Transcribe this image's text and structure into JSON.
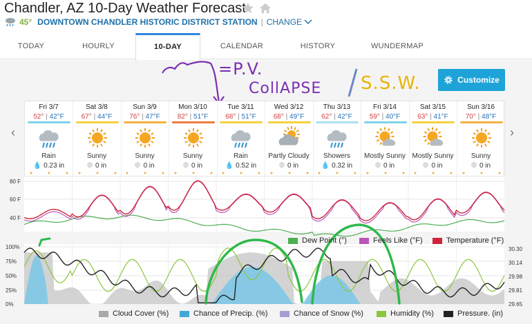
{
  "header": {
    "title": "Chandler, AZ 10-Day Weather Forecast",
    "current_temp": "45°",
    "station": "DOWNTOWN CHANDLER HISTORIC DISTRICT STATION",
    "separator": "|",
    "change_label": "CHANGE"
  },
  "tabs": [
    {
      "label": "TODAY"
    },
    {
      "label": "HOURLY"
    },
    {
      "label": "10-DAY",
      "active": true
    },
    {
      "label": "CALENDAR"
    },
    {
      "label": "HISTORY"
    },
    {
      "label": "WUNDERMAP"
    }
  ],
  "customize_label": "Customize",
  "annotations": {
    "pv": "=P.V.",
    "collapse": "CollAPSE",
    "ssw": "S.S.W."
  },
  "days": [
    {
      "date": "Fri 3/7",
      "hi": "52°",
      "lo": "42°F",
      "cond": "Rain",
      "precip": "0.23 in",
      "icon": "rain-icon",
      "bar": "#7fd3e8",
      "drop": true
    },
    {
      "date": "Sat 3/8",
      "hi": "67°",
      "lo": "44°F",
      "cond": "Sunny",
      "precip": "0 in",
      "icon": "sun-icon",
      "bar": "#f4d03f",
      "drop": false
    },
    {
      "date": "Sun 3/9",
      "hi": "76°",
      "lo": "47°F",
      "cond": "Sunny",
      "precip": "0 in",
      "icon": "sun-icon",
      "bar": "#f5b041",
      "drop": false
    },
    {
      "date": "Mon 3/10",
      "hi": "82°",
      "lo": "51°F",
      "cond": "Sunny",
      "precip": "0 in",
      "icon": "sun-icon",
      "bar": "#eb7d3c",
      "drop": false
    },
    {
      "date": "Tue 3/11",
      "hi": "68°",
      "lo": "51°F",
      "cond": "Rain",
      "precip": "0.52 in",
      "icon": "rain-icon",
      "bar": "#f4d03f",
      "drop": true
    },
    {
      "date": "Wed 3/12",
      "hi": "68°",
      "lo": "49°F",
      "cond": "Partly Cloudy",
      "precip": "0 in",
      "icon": "partly-cloudy-icon",
      "bar": "#f4d03f",
      "drop": false
    },
    {
      "date": "Thu 3/13",
      "hi": "62°",
      "lo": "42°F",
      "cond": "Showers",
      "precip": "0.32 in",
      "icon": "rain-icon",
      "bar": "#aee0ec",
      "drop": true
    },
    {
      "date": "Fri 3/14",
      "hi": "59°",
      "lo": "40°F",
      "cond": "Mostly Sunny",
      "precip": "0 in",
      "icon": "mostly-sunny-icon",
      "bar": "#7fd3e8",
      "drop": false
    },
    {
      "date": "Sat 3/15",
      "hi": "63°",
      "lo": "41°F",
      "cond": "Mostly Sunny",
      "precip": "0 in",
      "icon": "mostly-sunny-icon",
      "bar": "#f4d03f",
      "drop": false
    },
    {
      "date": "Sun 3/16",
      "hi": "70°",
      "lo": "48°F",
      "cond": "Sunny",
      "precip": "0 in",
      "icon": "sun-icon",
      "bar": "#f5b041",
      "drop": false
    }
  ],
  "chart_data": [
    {
      "type": "line",
      "ylabels": [
        "80 F",
        "60 F",
        "40 F"
      ],
      "ylim": [
        30,
        85
      ],
      "series": [
        {
          "name": "Dew Point (°)",
          "color": "#4caf50"
        },
        {
          "name": "Feels Like (°F)",
          "color": "#b857b8"
        },
        {
          "name": "Temperature (°F)",
          "color": "#d0243a"
        }
      ],
      "daily_high": [
        52,
        67,
        76,
        82,
        68,
        68,
        62,
        59,
        63,
        70
      ],
      "daily_low": [
        42,
        44,
        47,
        51,
        51,
        49,
        42,
        40,
        41,
        48
      ]
    },
    {
      "type": "area",
      "ylabels_left": [
        "100%",
        "75%",
        "50%",
        "25%",
        "0%"
      ],
      "ylabels_right": [
        "30.30",
        "30.14",
        "29.98",
        "29.81",
        "29.65"
      ],
      "series": [
        {
          "name": "Cloud Cover (%)",
          "color": "#a9a9a9"
        },
        {
          "name": "Chance of Precip. (%)",
          "color": "#3fa9d6"
        },
        {
          "name": "Chance of Snow (%)",
          "color": "#a49fd4"
        },
        {
          "name": "Humidity (%)",
          "color": "#8cc63f"
        },
        {
          "name": "Pressure. (in)",
          "color": "#222222"
        }
      ]
    }
  ]
}
